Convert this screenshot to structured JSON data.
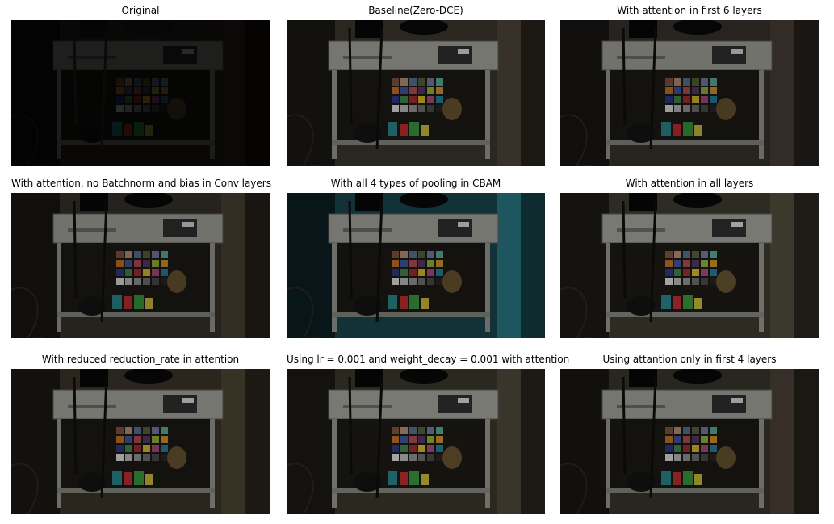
{
  "figure": {
    "panels": [
      {
        "title": "Original",
        "tone": "#0a0807",
        "bright": 0.18,
        "tint": "#0b0908"
      },
      {
        "title": "Baseline(Zero-DCE)",
        "tone": "#2a2620",
        "bright": 0.7,
        "tint": "#3a332a"
      },
      {
        "title": "With attention in first 6 layers",
        "tone": "#27231f",
        "bright": 0.68,
        "tint": "#352e27"
      },
      {
        "title": "With attention, no Batchnorm and bias in Conv layers",
        "tone": "#26221d",
        "bright": 0.68,
        "tint": "#342d25"
      },
      {
        "title": "With all 4 types of pooling in CBAM",
        "tone": "#123238",
        "bright": 0.7,
        "tint": "#1f5a63"
      },
      {
        "title": "With attention in all layers",
        "tone": "#2e2b22",
        "bright": 0.72,
        "tint": "#3d3a2d"
      },
      {
        "title": "With reduced reduction_rate in attention",
        "tone": "#2a261d",
        "bright": 0.7,
        "tint": "#3a3426"
      },
      {
        "title": "Using lr = 0.001 and weight_decay = 0.001 with attention",
        "tone": "#2b2820",
        "bright": 0.72,
        "tint": "#3b362b"
      },
      {
        "title": "Using attantion only in first 4 layers",
        "tone": "#29251f",
        "bright": 0.7,
        "tint": "#383128"
      }
    ]
  }
}
